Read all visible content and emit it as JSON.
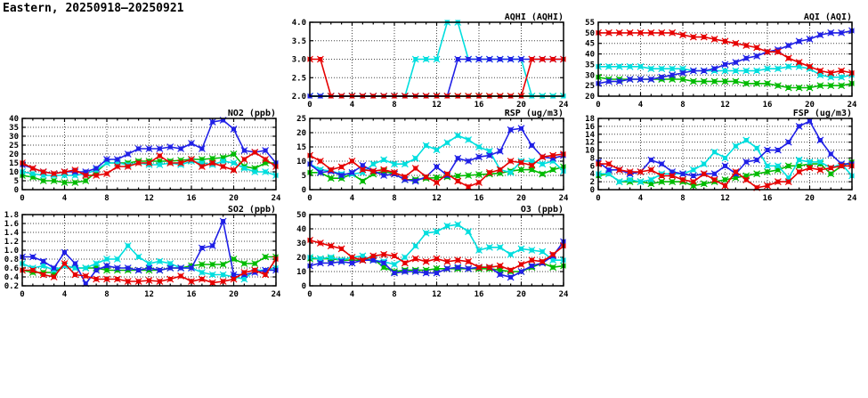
{
  "page": {
    "title": "Eastern, 20250918–20250921"
  },
  "colors": {
    "red": "#e60000",
    "green": "#00bb00",
    "blue": "#2020e6",
    "cyan": "#00dede",
    "axis": "#000000",
    "grid": "#444444",
    "background": "#ffffff"
  },
  "chart_data": [
    {
      "id": "aqhi",
      "type": "line",
      "title": "AQHI (AQHI)",
      "xlim": [
        0,
        24
      ],
      "xticks": [
        0,
        4,
        8,
        12,
        16,
        20,
        24
      ],
      "x_step_hours": 1,
      "ylim": [
        2.0,
        4.0
      ],
      "yticks": [
        2.0,
        2.5,
        3.0,
        3.5,
        4.0
      ],
      "ytick_decimals": 1,
      "grid": true,
      "legend": "none",
      "series": [
        {
          "name": "green",
          "values": [
            2,
            2,
            2,
            2,
            2,
            2,
            2,
            2,
            2,
            2,
            2,
            2,
            2,
            2,
            2,
            2,
            2,
            2,
            2,
            2,
            2,
            2,
            2,
            2,
            2
          ]
        },
        {
          "name": "cyan",
          "values": [
            2,
            2,
            2,
            2,
            2,
            2,
            2,
            2,
            2,
            2,
            3,
            3,
            3,
            4,
            4,
            3,
            3,
            3,
            3,
            3,
            3,
            2,
            2,
            2,
            2
          ]
        },
        {
          "name": "blue",
          "values": [
            2,
            2,
            2,
            2,
            2,
            2,
            2,
            2,
            2,
            2,
            2,
            2,
            2,
            2,
            3,
            3,
            3,
            3,
            3,
            3,
            3,
            3,
            3,
            3,
            3
          ]
        },
        {
          "name": "red",
          "values": [
            3,
            3,
            2,
            2,
            2,
            2,
            2,
            2,
            2,
            2,
            2,
            2,
            2,
            2,
            2,
            2,
            2,
            2,
            2,
            2,
            2,
            3,
            3,
            3,
            3
          ]
        }
      ]
    },
    {
      "id": "aqi",
      "type": "line",
      "title": "AQI (AQI)",
      "xlim": [
        0,
        24
      ],
      "xticks": [
        0,
        4,
        8,
        12,
        16,
        20,
        24
      ],
      "x_step_hours": 1,
      "ylim": [
        20,
        55
      ],
      "yticks": [
        20,
        25,
        30,
        35,
        40,
        45,
        50,
        55
      ],
      "ytick_decimals": 0,
      "grid": true,
      "legend": "none",
      "series": [
        {
          "name": "green",
          "values": [
            29,
            28,
            28,
            28,
            28,
            28,
            28,
            28,
            28,
            27,
            27,
            27,
            27,
            27,
            26,
            26,
            26,
            25,
            24,
            24,
            24,
            25,
            25,
            25,
            26
          ]
        },
        {
          "name": "cyan",
          "values": [
            34,
            34,
            34,
            34,
            34,
            33,
            33,
            33,
            33,
            32,
            32,
            32,
            32,
            32,
            32,
            32,
            33,
            33,
            34,
            34,
            33,
            30,
            29,
            29,
            30
          ]
        },
        {
          "name": "blue",
          "values": [
            26,
            27,
            27,
            28,
            28,
            28,
            29,
            30,
            31,
            32,
            32,
            33,
            35,
            36,
            38,
            39,
            41,
            42,
            44,
            46,
            47,
            49,
            50,
            50,
            51
          ]
        },
        {
          "name": "red",
          "values": [
            50,
            50,
            50,
            50,
            50,
            50,
            50,
            50,
            49,
            48,
            48,
            47,
            46,
            45,
            44,
            43,
            41,
            41,
            38,
            36,
            34,
            32,
            31,
            32,
            31
          ]
        }
      ]
    },
    {
      "id": "no2",
      "type": "line",
      "title": "NO2 (ppb)",
      "xlim": [
        0,
        24
      ],
      "xticks": [
        0,
        4,
        8,
        12,
        16,
        20,
        24
      ],
      "x_step_hours": 1,
      "ylim": [
        0,
        40
      ],
      "yticks": [
        0,
        5,
        10,
        15,
        20,
        25,
        30,
        35,
        40
      ],
      "ytick_decimals": 0,
      "grid": true,
      "legend": "none",
      "series": [
        {
          "name": "green",
          "values": [
            8,
            7,
            5,
            5,
            4,
            4,
            5,
            10,
            15,
            15,
            15,
            16,
            16,
            16,
            16,
            16.5,
            17,
            17,
            17.5,
            18,
            20,
            13,
            12,
            15,
            15
          ]
        },
        {
          "name": "cyan",
          "values": [
            10,
            9,
            8,
            8,
            8,
            8,
            9,
            11,
            15,
            15,
            14,
            15,
            14,
            14,
            15,
            14,
            16,
            15,
            14,
            16,
            15,
            12,
            10,
            10,
            8
          ]
        },
        {
          "name": "blue",
          "values": [
            14,
            12,
            10,
            9,
            10,
            10,
            10,
            12,
            17,
            17,
            20,
            23,
            23,
            23,
            24,
            23,
            26,
            23,
            38,
            39,
            34,
            22,
            21,
            22,
            15
          ]
        },
        {
          "name": "red",
          "values": [
            15,
            12,
            10,
            9,
            10,
            11,
            8,
            8,
            9,
            13,
            13,
            15,
            15,
            19,
            15,
            15,
            17,
            13,
            15,
            13,
            11,
            17,
            21,
            17,
            13
          ]
        }
      ]
    },
    {
      "id": "rsp",
      "type": "line",
      "title": "RSP (ug/m3)",
      "xlim": [
        0,
        24
      ],
      "xticks": [
        0,
        4,
        8,
        12,
        16,
        20,
        24
      ],
      "x_step_hours": 1,
      "ylim": [
        0,
        25
      ],
      "yticks": [
        0,
        5,
        10,
        15,
        20,
        25
      ],
      "ytick_decimals": 0,
      "grid": true,
      "legend": "none",
      "series": [
        {
          "name": "green",
          "values": [
            6,
            6,
            4,
            4,
            5.5,
            3,
            5.5,
            6.5,
            5.5,
            3.5,
            3.5,
            4,
            4.2,
            4.5,
            4.8,
            5,
            5.3,
            5.5,
            5.8,
            6.5,
            7,
            7,
            5.5,
            7,
            8
          ]
        },
        {
          "name": "cyan",
          "values": [
            9,
            7,
            6.5,
            5.5,
            5.5,
            6,
            9,
            10.5,
            9,
            9,
            11,
            15.5,
            14,
            16.5,
            19,
            17.5,
            15,
            13.5,
            7,
            6,
            10,
            10,
            9,
            10,
            6.5
          ]
        },
        {
          "name": "blue",
          "values": [
            9,
            6,
            6.5,
            5,
            6,
            8.5,
            6.5,
            5,
            5.5,
            3.5,
            3,
            4.5,
            8,
            5,
            11,
            10,
            11.5,
            12,
            13.5,
            21,
            21.5,
            15.5,
            11.5,
            11,
            12
          ]
        },
        {
          "name": "red",
          "values": [
            12,
            10,
            7,
            8,
            10,
            7,
            6.5,
            7,
            6,
            4.5,
            7.5,
            4.5,
            2.5,
            5.5,
            3,
            1,
            2.5,
            6,
            7,
            10,
            9.5,
            8.5,
            11.5,
            12,
            12.5
          ]
        }
      ]
    },
    {
      "id": "fsp",
      "type": "line",
      "title": "FSP (ug/m3)",
      "xlim": [
        0,
        24
      ],
      "xticks": [
        0,
        4,
        8,
        12,
        16,
        20,
        24
      ],
      "x_step_hours": 1,
      "ylim": [
        0,
        18
      ],
      "yticks": [
        0,
        2,
        4,
        6,
        8,
        10,
        12,
        14,
        16,
        18
      ],
      "ytick_decimals": 0,
      "grid": true,
      "legend": "none",
      "series": [
        {
          "name": "green",
          "values": [
            3.5,
            4,
            2,
            2,
            2,
            1.5,
            2,
            2,
            2,
            1,
            1.5,
            2,
            2.5,
            3,
            3.5,
            4,
            4.5,
            5,
            6,
            6,
            6.5,
            6.5,
            4,
            6,
            7
          ]
        },
        {
          "name": "cyan",
          "values": [
            4,
            4,
            2,
            2.5,
            2,
            2.5,
            4,
            4,
            4,
            5,
            6.5,
            9.5,
            8,
            11,
            12.5,
            10.5,
            6,
            6,
            3,
            7.5,
            7,
            7,
            5.5,
            6.5,
            3.5
          ]
        },
        {
          "name": "blue",
          "values": [
            7,
            5,
            5,
            4,
            4.5,
            7.5,
            6.5,
            4.5,
            4,
            3.5,
            4,
            4,
            6,
            4,
            7,
            7.5,
            10,
            10,
            12,
            16,
            17.3,
            12.5,
            9,
            6.5,
            6.5
          ]
        },
        {
          "name": "red",
          "values": [
            6.5,
            6.5,
            5,
            4.5,
            4.5,
            5,
            3.5,
            3.5,
            2.5,
            2,
            4,
            2.5,
            1,
            4.5,
            2.5,
            0.5,
            1,
            2,
            2,
            4.5,
            5.5,
            5,
            5.5,
            6,
            6
          ]
        }
      ]
    },
    {
      "id": "so2",
      "type": "line",
      "title": "SO2 (ppb)",
      "xlim": [
        0,
        24
      ],
      "xticks": [
        0,
        4,
        8,
        12,
        16,
        20,
        24
      ],
      "x_step_hours": 1,
      "ylim": [
        0.2,
        1.8
      ],
      "yticks": [
        0.2,
        0.4,
        0.6,
        0.8,
        1.0,
        1.2,
        1.4,
        1.6,
        1.8
      ],
      "ytick_decimals": 1,
      "grid": true,
      "legend": "none",
      "series": [
        {
          "name": "green",
          "values": [
            0.55,
            0.5,
            0.5,
            0.5,
            0.65,
            0.6,
            0.6,
            0.6,
            0.55,
            0.55,
            0.55,
            0.55,
            0.55,
            0.55,
            0.6,
            0.6,
            0.65,
            0.68,
            0.68,
            0.68,
            0.8,
            0.7,
            0.7,
            0.85,
            0.85
          ]
        },
        {
          "name": "cyan",
          "values": [
            0.7,
            0.6,
            0.65,
            0.55,
            0.65,
            0.6,
            0.6,
            0.7,
            0.8,
            0.8,
            1.1,
            0.85,
            0.7,
            0.75,
            0.7,
            0.6,
            0.6,
            0.5,
            0.45,
            0.45,
            0.4,
            0.35,
            0.55,
            0.55,
            0.6
          ]
        },
        {
          "name": "blue",
          "values": [
            0.85,
            0.85,
            0.75,
            0.6,
            0.95,
            0.7,
            0.25,
            0.55,
            0.65,
            0.6,
            0.6,
            0.55,
            0.6,
            0.55,
            0.6,
            0.6,
            0.6,
            1.05,
            1.1,
            1.65,
            0.45,
            0.45,
            0.5,
            0.55,
            0.55
          ]
        },
        {
          "name": "red",
          "values": [
            0.55,
            0.55,
            0.45,
            0.4,
            0.7,
            0.45,
            0.42,
            0.35,
            0.35,
            0.35,
            0.3,
            0.3,
            0.32,
            0.3,
            0.35,
            0.42,
            0.3,
            0.35,
            0.27,
            0.3,
            0.35,
            0.5,
            0.55,
            0.45,
            0.8
          ]
        }
      ]
    },
    {
      "id": "o3",
      "type": "line",
      "title": "O3 (ppb)",
      "xlim": [
        0,
        24
      ],
      "xticks": [
        0,
        4,
        8,
        12,
        16,
        20,
        24
      ],
      "x_step_hours": 1,
      "ylim": [
        0,
        50
      ],
      "yticks": [
        0,
        10,
        20,
        30,
        40,
        50
      ],
      "ytick_decimals": 0,
      "grid": true,
      "legend": "none",
      "series": [
        {
          "name": "green",
          "values": [
            19,
            19,
            19,
            18,
            18,
            18,
            19,
            13,
            10,
            11,
            11,
            11,
            12,
            12,
            12,
            12,
            12,
            12,
            11,
            10,
            10,
            13,
            16,
            13,
            14
          ]
        },
        {
          "name": "cyan",
          "values": [
            20,
            19,
            20,
            18,
            20,
            21,
            18,
            17,
            15,
            20,
            28,
            37,
            38,
            42,
            43,
            38,
            25,
            27,
            27,
            22,
            26,
            25,
            24,
            18,
            18
          ]
        },
        {
          "name": "blue",
          "values": [
            14,
            16,
            16,
            17,
            16,
            18,
            18,
            16,
            9,
            10,
            10,
            9,
            9,
            12,
            13,
            12,
            13,
            13,
            8,
            6,
            10,
            14,
            16,
            21,
            31
          ]
        },
        {
          "name": "red",
          "values": [
            32,
            30,
            28,
            26,
            20,
            18,
            21,
            22,
            21,
            16,
            19,
            17,
            19,
            17,
            18,
            17,
            13,
            13,
            14,
            11,
            15,
            18,
            17,
            22,
            28
          ]
        }
      ]
    }
  ]
}
